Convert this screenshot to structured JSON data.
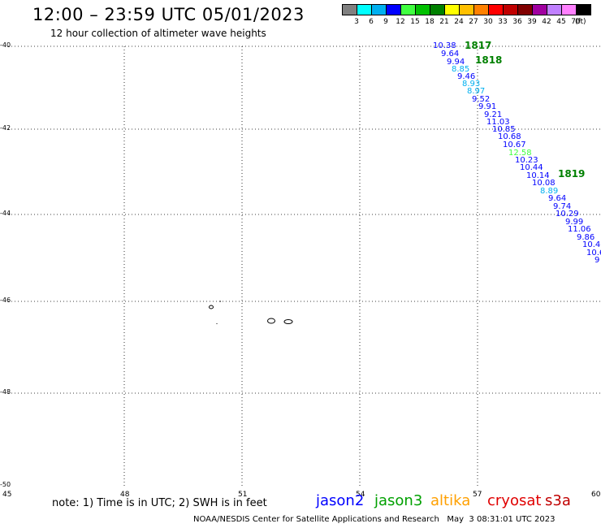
{
  "header": {
    "title": "12:00 – 23:59 UTC 05/01/2023",
    "subtitle": "12 hour collection of altimeter wave heights"
  },
  "colorbar": {
    "colors": [
      "#808080",
      "#00ffff",
      "#00b0f0",
      "#0000ff",
      "#40ff40",
      "#00c000",
      "#008000",
      "#ffff00",
      "#ffc000",
      "#ff8000",
      "#ff0000",
      "#c00000",
      "#800000",
      "#a000a0",
      "#c080ff",
      "#ff80ff",
      "#000000"
    ],
    "labels": [
      "3",
      "6",
      "9",
      "12",
      "15",
      "18",
      "21",
      "24",
      "27",
      "30",
      "33",
      "36",
      "39",
      "42",
      "45",
      "70"
    ],
    "unit": "(ft)"
  },
  "axes": {
    "lat_labels": [
      "-40",
      "-42",
      "-44",
      "-46",
      "-48",
      "-50"
    ],
    "lon_labels": [
      "45",
      "48",
      "51",
      "54",
      "57",
      "60"
    ]
  },
  "passes": [
    {
      "id": "1817",
      "color": "#008000"
    },
    {
      "id": "1818",
      "color": "#008000"
    },
    {
      "id": "1819",
      "color": "#008000"
    }
  ],
  "observations": [
    {
      "value": "10.38",
      "color": "#0000ff"
    },
    {
      "value": "9.64",
      "color": "#0000ff"
    },
    {
      "value": "9.94",
      "color": "#0000ff"
    },
    {
      "value": "8.85",
      "color": "#00b0f0"
    },
    {
      "value": "9.46",
      "color": "#0000ff"
    },
    {
      "value": "8.93",
      "color": "#00b0f0"
    },
    {
      "value": "8.97",
      "color": "#00b0f0"
    },
    {
      "value": "9.52",
      "color": "#0000ff"
    },
    {
      "value": "9.91",
      "color": "#0000ff"
    },
    {
      "value": "9.21",
      "color": "#0000ff"
    },
    {
      "value": "11.03",
      "color": "#0000ff"
    },
    {
      "value": "10.85",
      "color": "#0000ff"
    },
    {
      "value": "10.68",
      "color": "#0000ff"
    },
    {
      "value": "10.67",
      "color": "#0000ff"
    },
    {
      "value": "12.58",
      "color": "#40ff40"
    },
    {
      "value": "10.23",
      "color": "#0000ff"
    },
    {
      "value": "10.44",
      "color": "#0000ff"
    },
    {
      "value": "10.14",
      "color": "#0000ff"
    },
    {
      "value": "10.08",
      "color": "#0000ff"
    },
    {
      "value": "8.89",
      "color": "#00b0f0"
    },
    {
      "value": "9.64",
      "color": "#0000ff"
    },
    {
      "value": "9.74",
      "color": "#0000ff"
    },
    {
      "value": "10.29",
      "color": "#0000ff"
    },
    {
      "value": "9.99",
      "color": "#0000ff"
    },
    {
      "value": "11.06",
      "color": "#0000ff"
    },
    {
      "value": "9.86",
      "color": "#0000ff"
    },
    {
      "value": "10.40",
      "color": "#0000ff"
    },
    {
      "value": "10.6",
      "color": "#0000ff"
    },
    {
      "value": "9",
      "color": "#0000ff"
    }
  ],
  "footer": {
    "note": "note: 1) Time is in UTC; 2) SWH is in feet",
    "satellites": [
      {
        "name": "jason2",
        "color": "#0000ff"
      },
      {
        "name": "jason3",
        "color": "#00a000"
      },
      {
        "name": "altika",
        "color": "#ffa000"
      },
      {
        "name": "cryosat",
        "color": "#e00000"
      },
      {
        "name": "s3a",
        "color": "#c00000"
      }
    ],
    "credit": "NOAA/NESDIS Center for Satellite Applications and Research   May  3 08:31:01 UTC 2023"
  }
}
